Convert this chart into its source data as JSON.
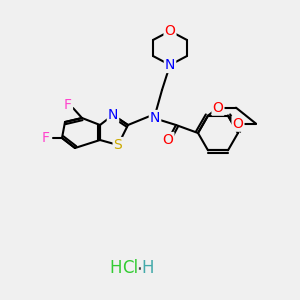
{
  "bg_color": "#f0f0f0",
  "atom_colors": {
    "O": "#ff0000",
    "N": "#0000ff",
    "S": "#ccaa00",
    "F": "#ff44cc",
    "C": "#000000",
    "Cl": "#33cc33",
    "H": "#44aaaa"
  },
  "bond_color": "#000000",
  "bond_width": 1.5,
  "font_size": 10,
  "fig_width": 3.0,
  "fig_height": 3.0,
  "dpi": 100
}
